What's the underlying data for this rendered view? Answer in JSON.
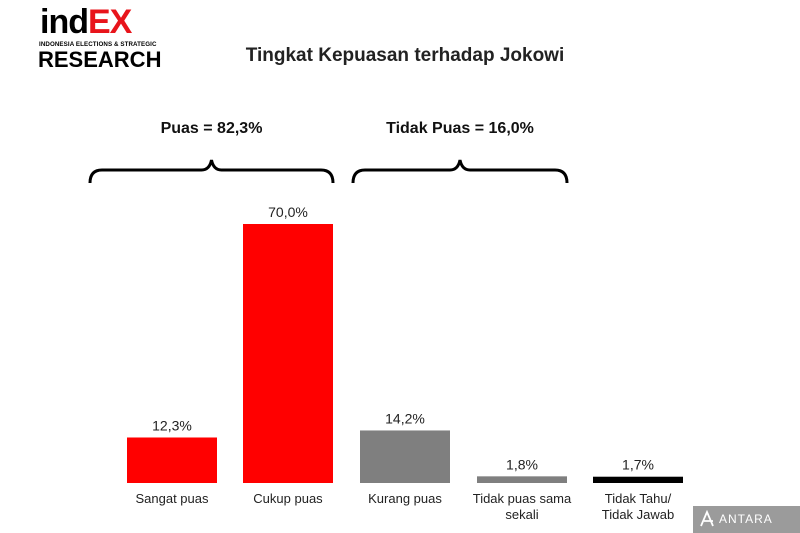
{
  "logo": {
    "line1_a": "ind",
    "line1_b": "EX",
    "line2": "INDONESIA ELECTIONS & STRATEGIC",
    "line3": "RESEARCH"
  },
  "watermark": {
    "text": "ANTARA"
  },
  "chart_data": {
    "type": "bar",
    "title": "Tingkat Kepuasan terhadap Jokowi",
    "categories": [
      [
        "Sangat puas"
      ],
      [
        "Cukup puas"
      ],
      [
        "Kurang puas"
      ],
      [
        "Tidak puas sama",
        "sekali"
      ],
      [
        "Tidak Tahu/",
        "Tidak Jawab"
      ]
    ],
    "values": [
      12.3,
      70.0,
      14.2,
      1.8,
      1.7
    ],
    "value_labels": [
      "12,3%",
      "70,0%",
      "14,2%",
      "1,8%",
      "1,7%"
    ],
    "colors": [
      "#ff0000",
      "#ff0000",
      "#7f7f7f",
      "#7f7f7f",
      "#000000"
    ],
    "groups": [
      {
        "label": "Puas = 82,3%",
        "categories": [
          0,
          1
        ]
      },
      {
        "label": "Tidak Puas = 16,0%",
        "categories": [
          2,
          3
        ]
      }
    ],
    "ylim": [
      0,
      70
    ],
    "grid": false
  }
}
